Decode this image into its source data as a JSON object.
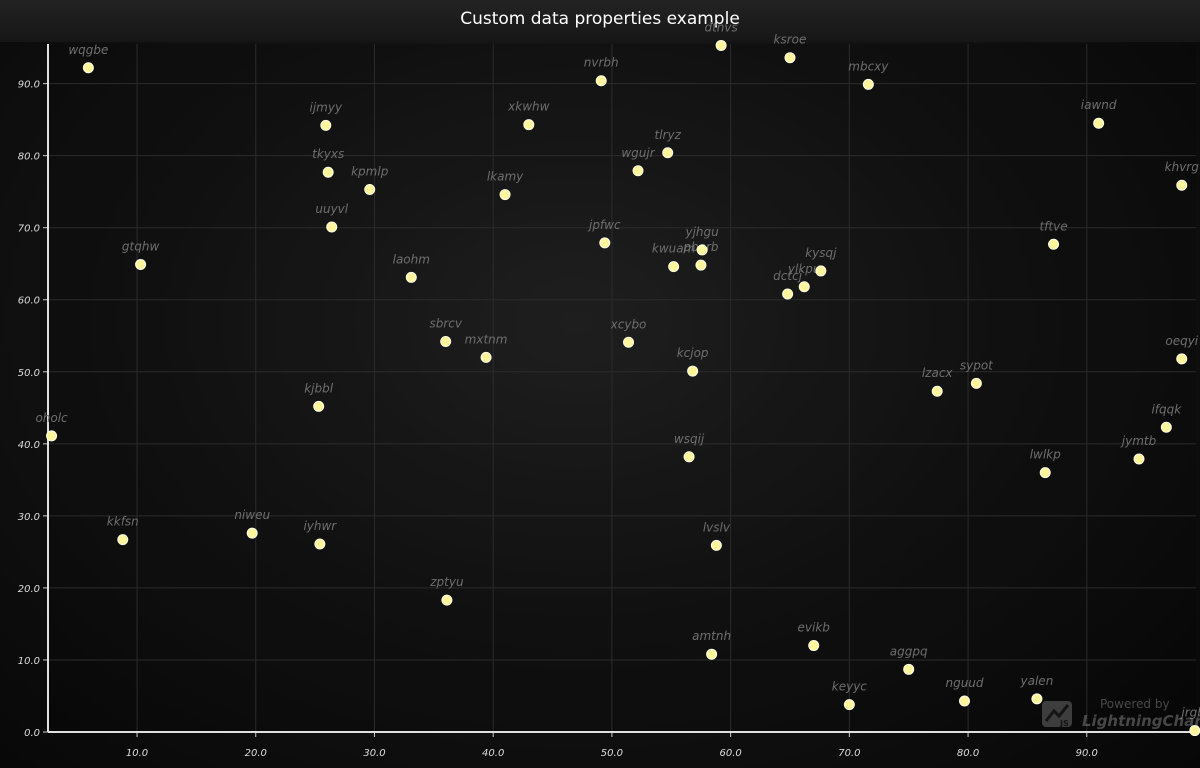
{
  "chart_data": {
    "type": "scatter",
    "title": "Custom data properties example",
    "xlabel": "",
    "ylabel": "",
    "xlim": [
      2.5,
      99.2
    ],
    "ylim": [
      0,
      95.5
    ],
    "x_ticks": [
      "10.0",
      "20.0",
      "30.0",
      "40.0",
      "50.0",
      "60.0",
      "70.0",
      "80.0",
      "90.0"
    ],
    "y_ticks": [
      "0.0",
      "10.0",
      "20.0",
      "30.0",
      "40.0",
      "50.0",
      "60.0",
      "70.0",
      "80.0",
      "90.0"
    ],
    "grid": true,
    "marker_color": "#fff59d",
    "background_color": "#111111",
    "points": [
      {
        "name": "wqgbe",
        "x": 5.9,
        "y": 92.2
      },
      {
        "name": "dtnvs",
        "x": 59.2,
        "y": 95.3
      },
      {
        "name": "ksroe",
        "x": 65.0,
        "y": 93.6
      },
      {
        "name": "nvrbh",
        "x": 49.1,
        "y": 90.4
      },
      {
        "name": "mbcxy",
        "x": 71.6,
        "y": 89.9
      },
      {
        "name": "ijmyy",
        "x": 25.9,
        "y": 84.2
      },
      {
        "name": "xkwhw",
        "x": 43.0,
        "y": 84.3
      },
      {
        "name": "iawnd",
        "x": 91.0,
        "y": 84.5
      },
      {
        "name": "tlryz",
        "x": 54.7,
        "y": 80.4
      },
      {
        "name": "tkyxs",
        "x": 26.1,
        "y": 77.7
      },
      {
        "name": "wgujr",
        "x": 52.2,
        "y": 77.9
      },
      {
        "name": "kpmlp",
        "x": 29.6,
        "y": 75.3
      },
      {
        "name": "lkamy",
        "x": 41.0,
        "y": 74.6
      },
      {
        "name": "khvrg",
        "x": 98.0,
        "y": 75.9
      },
      {
        "name": "uuyvl",
        "x": 26.4,
        "y": 70.1
      },
      {
        "name": "jpfwc",
        "x": 49.4,
        "y": 67.9
      },
      {
        "name": "yjhgu",
        "x": 57.6,
        "y": 66.9
      },
      {
        "name": "tftve",
        "x": 87.2,
        "y": 67.7
      },
      {
        "name": "gtqhw",
        "x": 10.3,
        "y": 64.9
      },
      {
        "name": "kwuam",
        "x": 55.2,
        "y": 64.6
      },
      {
        "name": "pbarb",
        "x": 57.5,
        "y": 64.8
      },
      {
        "name": "kysqj",
        "x": 67.6,
        "y": 64.0
      },
      {
        "name": "laohm",
        "x": 33.1,
        "y": 63.1
      },
      {
        "name": "ylkpu",
        "x": 66.2,
        "y": 61.8
      },
      {
        "name": "dctcj",
        "x": 64.8,
        "y": 60.8
      },
      {
        "name": "sbrcv",
        "x": 36.0,
        "y": 54.2
      },
      {
        "name": "xcybo",
        "x": 51.4,
        "y": 54.1
      },
      {
        "name": "mxtnm",
        "x": 39.4,
        "y": 52.0
      },
      {
        "name": "oeqyi",
        "x": 98.0,
        "y": 51.8
      },
      {
        "name": "kcjop",
        "x": 56.8,
        "y": 50.1
      },
      {
        "name": "sypot",
        "x": 80.7,
        "y": 48.4
      },
      {
        "name": "lzacx",
        "x": 77.4,
        "y": 47.3
      },
      {
        "name": "kjbbl",
        "x": 25.3,
        "y": 45.2
      },
      {
        "name": "ifqqk",
        "x": 96.7,
        "y": 42.3
      },
      {
        "name": "oholc",
        "x": 2.8,
        "y": 41.1
      },
      {
        "name": "wsqij",
        "x": 56.5,
        "y": 38.2
      },
      {
        "name": "jymtb",
        "x": 94.4,
        "y": 37.9
      },
      {
        "name": "lwlkp",
        "x": 86.5,
        "y": 36.0
      },
      {
        "name": "kkfsn",
        "x": 8.8,
        "y": 26.7
      },
      {
        "name": "niweu",
        "x": 19.7,
        "y": 27.6
      },
      {
        "name": "iyhwr",
        "x": 25.4,
        "y": 26.1
      },
      {
        "name": "lvslv",
        "x": 58.8,
        "y": 25.9
      },
      {
        "name": "zptyu",
        "x": 36.1,
        "y": 18.3
      },
      {
        "name": "evikb",
        "x": 67.0,
        "y": 12.0
      },
      {
        "name": "amtnh",
        "x": 58.4,
        "y": 10.8
      },
      {
        "name": "aggpq",
        "x": 75.0,
        "y": 8.7
      },
      {
        "name": "yalen",
        "x": 85.8,
        "y": 4.6
      },
      {
        "name": "nguud",
        "x": 79.7,
        "y": 4.3
      },
      {
        "name": "keyyc",
        "x": 70.0,
        "y": 3.8
      },
      {
        "name": "jrgbl",
        "x": 99.1,
        "y": 0.2
      }
    ]
  },
  "watermark": {
    "powered": "Powered by",
    "brand": "LightningChart",
    "logo_mark": "JS"
  }
}
